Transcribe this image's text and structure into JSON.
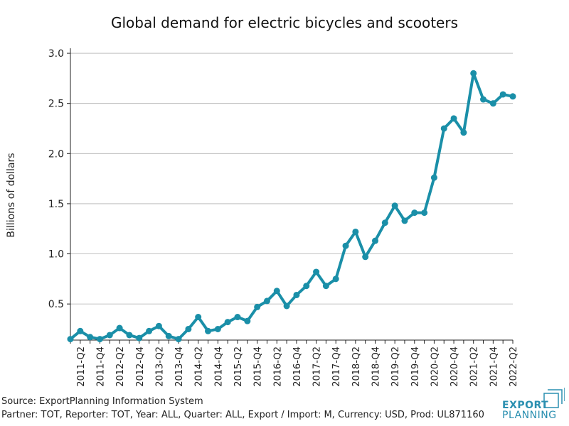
{
  "chart_data": {
    "type": "line",
    "title": "Global demand for electric bicycles and scooters",
    "ylabel": "Billions of dollars",
    "xlabel": "",
    "ylim": [
      0.14,
      3.05
    ],
    "yticks": [
      0.5,
      1.0,
      1.5,
      2.0,
      2.5,
      3.0
    ],
    "ytick_labels": [
      "0.5",
      "1.0",
      "1.5",
      "2.0",
      "2.5",
      "3.0"
    ],
    "grid": "horizontal",
    "color": "#1a8fa8",
    "x": [
      "2011-Q1",
      "2011-Q2",
      "2011-Q3",
      "2011-Q4",
      "2012-Q1",
      "2012-Q2",
      "2012-Q3",
      "2012-Q4",
      "2013-Q1",
      "2013-Q2",
      "2013-Q3",
      "2013-Q4",
      "2014-Q1",
      "2014-Q2",
      "2014-Q3",
      "2014-Q4",
      "2015-Q1",
      "2015-Q2",
      "2015-Q3",
      "2015-Q4",
      "2016-Q1",
      "2016-Q2",
      "2016-Q3",
      "2016-Q4",
      "2017-Q1",
      "2017-Q2",
      "2017-Q3",
      "2017-Q4",
      "2018-Q1",
      "2018-Q2",
      "2018-Q3",
      "2018-Q4",
      "2019-Q1",
      "2019-Q2",
      "2019-Q3",
      "2019-Q4",
      "2020-Q1",
      "2020-Q2",
      "2020-Q3",
      "2020-Q4",
      "2021-Q1",
      "2021-Q2",
      "2021-Q3",
      "2021-Q4",
      "2022-Q1",
      "2022-Q2"
    ],
    "x_tick_labels": [
      "2011-Q2",
      "2011-Q4",
      "2012-Q2",
      "2012-Q4",
      "2013-Q2",
      "2013-Q4",
      "2014-Q2",
      "2014-Q4",
      "2015-Q2",
      "2015-Q4",
      "2016-Q2",
      "2016-Q4",
      "2017-Q2",
      "2017-Q4",
      "2018-Q2",
      "2018-Q4",
      "2019-Q2",
      "2019-Q4",
      "2020-Q2",
      "2020-Q4",
      "2021-Q2",
      "2021-Q4",
      "2022-Q2"
    ],
    "series": [
      {
        "values": [
          0.15,
          0.23,
          0.17,
          0.15,
          0.19,
          0.26,
          0.19,
          0.16,
          0.23,
          0.28,
          0.18,
          0.15,
          0.25,
          0.37,
          0.23,
          0.25,
          0.32,
          0.37,
          0.33,
          0.47,
          0.53,
          0.63,
          0.48,
          0.59,
          0.68,
          0.82,
          0.68,
          0.75,
          1.08,
          1.22,
          0.97,
          1.13,
          1.31,
          1.48,
          1.33,
          1.41,
          1.41,
          1.76,
          2.25,
          2.35,
          2.21,
          2.8,
          2.54,
          2.5,
          2.59,
          2.57
        ]
      }
    ]
  },
  "footer": {
    "source": "Source: ExportPlanning Information System",
    "partner": "Partner: TOT, Reporter: TOT, Year: ALL, Quarter: ALL, Export / Import: M, Currency: USD, Prod: UL871160"
  },
  "logo": {
    "line1": "EXPORT",
    "line2": "PLANNING"
  }
}
